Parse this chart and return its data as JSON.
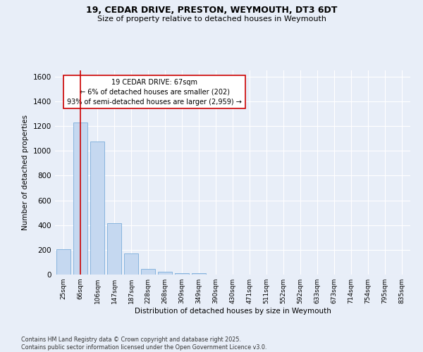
{
  "title1": "19, CEDAR DRIVE, PRESTON, WEYMOUTH, DT3 6DT",
  "title2": "Size of property relative to detached houses in Weymouth",
  "xlabel": "Distribution of detached houses by size in Weymouth",
  "ylabel": "Number of detached properties",
  "bar_labels": [
    "25sqm",
    "66sqm",
    "106sqm",
    "147sqm",
    "187sqm",
    "228sqm",
    "268sqm",
    "309sqm",
    "349sqm",
    "390sqm",
    "430sqm",
    "471sqm",
    "511sqm",
    "552sqm",
    "592sqm",
    "633sqm",
    "673sqm",
    "714sqm",
    "754sqm",
    "795sqm",
    "835sqm"
  ],
  "bar_values": [
    205,
    1230,
    1075,
    415,
    172,
    48,
    25,
    13,
    13,
    0,
    0,
    0,
    0,
    0,
    0,
    0,
    0,
    0,
    0,
    0,
    0
  ],
  "bar_color": "#c5d8f0",
  "bar_edge_color": "#7aadda",
  "vline_x": 1.0,
  "vline_color": "#cc0000",
  "annotation_text": "19 CEDAR DRIVE: 67sqm\n← 6% of detached houses are smaller (202)\n93% of semi-detached houses are larger (2,959) →",
  "annotation_box_color": "#ffffff",
  "annotation_box_edge": "#cc0000",
  "ylim": [
    0,
    1650
  ],
  "background_color": "#e8eef8",
  "grid_color": "#ffffff",
  "yticks": [
    0,
    200,
    400,
    600,
    800,
    1000,
    1200,
    1400,
    1600
  ],
  "footer": "Contains HM Land Registry data © Crown copyright and database right 2025.\nContains public sector information licensed under the Open Government Licence v3.0."
}
